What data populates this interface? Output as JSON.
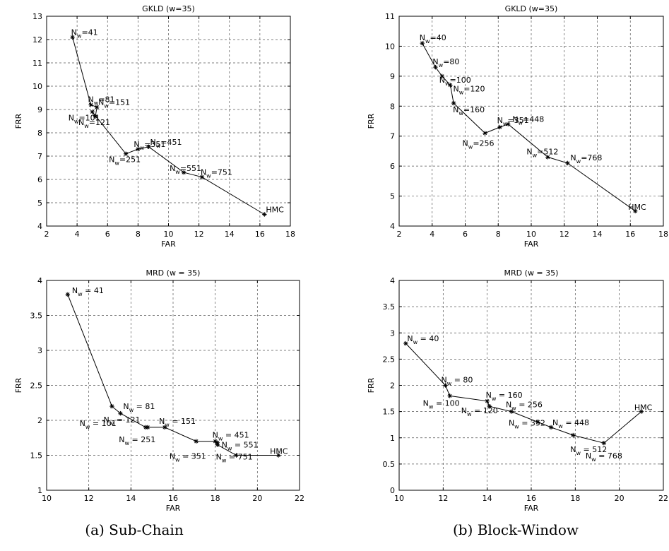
{
  "figure": {
    "captions": [
      "(a) Sub-Chain",
      "(b) Block-Window"
    ]
  },
  "chart_data": [
    {
      "type": "line",
      "title": "GKLD (w=35)",
      "xlabel": "FAR",
      "ylabel": "FRR",
      "xlim": [
        2,
        18
      ],
      "ylim": [
        4,
        13
      ],
      "xticks": [
        2,
        4,
        6,
        8,
        10,
        12,
        14,
        16,
        18
      ],
      "yticks": [
        4,
        5,
        6,
        7,
        8,
        9,
        10,
        11,
        12,
        13
      ],
      "grid": true,
      "x": [
        3.7,
        4.9,
        5.3,
        5.2,
        5.0,
        7.2,
        8.0,
        8.7,
        11.0,
        12.2,
        16.3
      ],
      "y": [
        12.1,
        9.2,
        9.1,
        8.7,
        8.9,
        7.1,
        7.3,
        7.4,
        6.3,
        6.1,
        4.5
      ],
      "annotations": [
        {
          "base": "N",
          "sub": "w",
          "value": "=41",
          "x": 3.7,
          "y": 12.1
        },
        {
          "base": "N",
          "sub": "w",
          "value": "=81",
          "x": 4.9,
          "y": 9.2
        },
        {
          "base": "N",
          "sub": "w",
          "value": "=151",
          "x": 5.3,
          "y": 9.1
        },
        {
          "base": "N",
          "sub": "w",
          "value": "=121",
          "x": 5.2,
          "y": 8.7
        },
        {
          "base": "N",
          "sub": "w",
          "value": "=101",
          "x": 5.0,
          "y": 8.9
        },
        {
          "base": "N",
          "sub": "w",
          "value": "=251",
          "x": 7.2,
          "y": 7.1
        },
        {
          "base": "N",
          "sub": "w",
          "value": "=351",
          "x": 8.0,
          "y": 7.3
        },
        {
          "base": "N",
          "sub": "w",
          "value": "=451",
          "x": 8.7,
          "y": 7.4
        },
        {
          "base": "N",
          "sub": "w",
          "value": "=551",
          "x": 11.0,
          "y": 6.3
        },
        {
          "base": "N",
          "sub": "w",
          "value": "=751",
          "x": 12.2,
          "y": 6.1
        },
        {
          "base": "",
          "sub": "",
          "value": "HMC",
          "x": 16.3,
          "y": 4.5
        }
      ]
    },
    {
      "type": "line",
      "title": "GKLD (w=35)",
      "xlabel": "FAR",
      "ylabel": "FRR",
      "xlim": [
        2,
        18
      ],
      "ylim": [
        4,
        11
      ],
      "xticks": [
        2,
        4,
        6,
        8,
        10,
        12,
        14,
        16,
        18
      ],
      "yticks": [
        4,
        5,
        6,
        7,
        8,
        9,
        10,
        11
      ],
      "grid": true,
      "x": [
        3.4,
        4.2,
        4.6,
        5.1,
        5.3,
        7.2,
        8.1,
        8.6,
        11.0,
        12.2,
        16.3
      ],
      "y": [
        10.1,
        9.3,
        9.0,
        8.7,
        8.1,
        7.1,
        7.3,
        7.4,
        6.3,
        6.1,
        4.5
      ],
      "annotations": [
        {
          "base": "N",
          "sub": "w",
          "value": "=40",
          "x": 3.4,
          "y": 10.1
        },
        {
          "base": "N",
          "sub": "w",
          "value": "=80",
          "x": 4.2,
          "y": 9.3
        },
        {
          "base": "N",
          "sub": "w",
          "value": "=100",
          "x": 4.6,
          "y": 9.0
        },
        {
          "base": "N",
          "sub": "w",
          "value": "=120",
          "x": 5.1,
          "y": 8.7
        },
        {
          "base": "N",
          "sub": "w",
          "value": "=160",
          "x": 5.3,
          "y": 8.1
        },
        {
          "base": "N",
          "sub": "w",
          "value": "=256",
          "x": 7.2,
          "y": 7.1
        },
        {
          "base": "N",
          "sub": "w",
          "value": "=351",
          "x": 8.1,
          "y": 7.3
        },
        {
          "base": "N",
          "sub": "w",
          "value": "=448",
          "x": 8.6,
          "y": 7.4
        },
        {
          "base": "N",
          "sub": "w",
          "value": "=512",
          "x": 11.0,
          "y": 6.3
        },
        {
          "base": "N",
          "sub": "w",
          "value": "=768",
          "x": 12.2,
          "y": 6.1
        },
        {
          "base": "",
          "sub": "",
          "value": "HMC",
          "x": 16.3,
          "y": 4.5
        }
      ]
    },
    {
      "type": "line",
      "title": "MRD (w = 35)",
      "xlabel": "FAR",
      "ylabel": "FRR",
      "xlim": [
        10,
        22
      ],
      "ylim": [
        1,
        4
      ],
      "xticks": [
        10,
        12,
        14,
        16,
        18,
        20,
        22
      ],
      "yticks": [
        1,
        1.5,
        2,
        2.5,
        3,
        3.5,
        4
      ],
      "grid": true,
      "x": [
        11.0,
        13.1,
        13.5,
        14.7,
        14.8,
        15.6,
        17.1,
        18.0,
        18.1,
        18.1,
        19.0,
        21.0
      ],
      "y": [
        3.8,
        2.2,
        2.1,
        1.9,
        1.9,
        1.9,
        1.7,
        1.7,
        1.68,
        1.65,
        1.5,
        1.5
      ],
      "annotations": [
        {
          "base": "N",
          "sub": "w",
          "value": " = 41",
          "x": 11.0,
          "y": 3.8
        },
        {
          "base": "N",
          "sub": "w",
          "value": " = 81",
          "x": 13.5,
          "y": 2.1
        },
        {
          "base": "N",
          "sub": "w",
          "value": " = 101",
          "x": 12.1,
          "y": 2.0
        },
        {
          "base": "N",
          "sub": "w",
          "value": " = 121",
          "x": 13.1,
          "y": 2.2
        },
        {
          "base": "N",
          "sub": "w",
          "value": " = 151",
          "x": 15.6,
          "y": 1.9
        },
        {
          "base": "N",
          "sub": "w",
          "value": " = 251",
          "x": 14.7,
          "y": 1.9
        },
        {
          "base": "N",
          "sub": "w",
          "value": " = 351",
          "x": 17.1,
          "y": 1.7
        },
        {
          "base": "N",
          "sub": "w",
          "value": " = 451",
          "x": 18.0,
          "y": 1.7
        },
        {
          "base": "N",
          "sub": "w",
          "value": " = 551",
          "x": 18.1,
          "y": 1.68
        },
        {
          "base": "N",
          "sub": "w",
          "value": " = 751",
          "x": 18.1,
          "y": 1.65
        },
        {
          "base": "",
          "sub": "",
          "value": "HMC",
          "x": 21.0,
          "y": 1.5
        }
      ]
    },
    {
      "type": "line",
      "title": "MRD (w = 35)",
      "xlabel": "FAR",
      "ylabel": "FRR",
      "xlim": [
        10,
        22
      ],
      "ylim": [
        0,
        4
      ],
      "xticks": [
        10,
        12,
        14,
        16,
        18,
        20,
        22
      ],
      "yticks": [
        0,
        0.5,
        1,
        1.5,
        2,
        2.5,
        3,
        3.5,
        4
      ],
      "grid": true,
      "x": [
        10.3,
        12.1,
        12.3,
        14.0,
        14.1,
        15.1,
        16.3,
        16.9,
        17.9,
        19.3,
        21.0
      ],
      "y": [
        2.8,
        2.0,
        1.8,
        1.7,
        1.6,
        1.5,
        1.3,
        1.2,
        1.05,
        0.9,
        1.5
      ],
      "annotations": [
        {
          "base": "N",
          "sub": "w",
          "value": " = 40",
          "x": 10.3,
          "y": 2.8
        },
        {
          "base": "N",
          "sub": "w",
          "value": " = 80",
          "x": 12.1,
          "y": 2.0
        },
        {
          "base": "N",
          "sub": "w",
          "value": " = 100",
          "x": 12.3,
          "y": 1.8
        },
        {
          "base": "N",
          "sub": "w",
          "value": " = 160",
          "x": 14.0,
          "y": 1.7
        },
        {
          "base": "N",
          "sub": "w",
          "value": " = 120",
          "x": 14.1,
          "y": 1.6
        },
        {
          "base": "N",
          "sub": "w",
          "value": " = 256",
          "x": 15.1,
          "y": 1.5
        },
        {
          "base": "N",
          "sub": "w",
          "value": " = 352",
          "x": 15.1,
          "y": 1.5
        },
        {
          "base": "N",
          "sub": "w",
          "value": " = 448",
          "x": 16.9,
          "y": 1.2
        },
        {
          "base": "N",
          "sub": "w",
          "value": " = 512",
          "x": 17.9,
          "y": 1.05
        },
        {
          "base": "N",
          "sub": "w",
          "value": " = 768",
          "x": 19.3,
          "y": 0.9
        },
        {
          "base": "",
          "sub": "",
          "value": "HMC",
          "x": 21.0,
          "y": 1.5
        }
      ]
    }
  ]
}
